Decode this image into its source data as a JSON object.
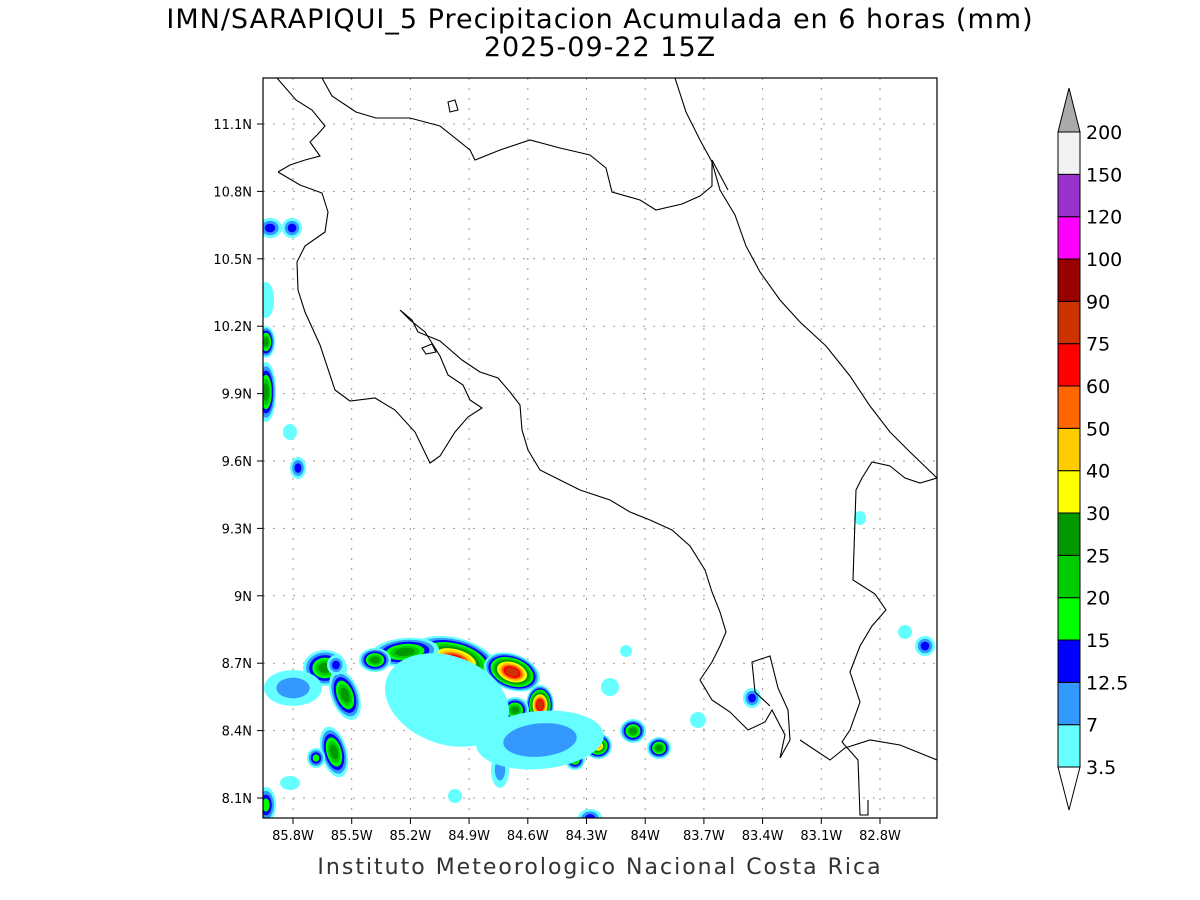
{
  "title": "IMN/SARAPIQUI_5 Precipitacion Acumulada en 6 horas (mm)",
  "subtitle": "2025-09-22 15Z",
  "footer": "Instituto Meteorologico Nacional Costa Rica",
  "map": {
    "lon_range": [
      "85.95W",
      "82.5W"
    ],
    "lat_range": [
      "8.0N",
      "11.3N"
    ],
    "grid": "dotted",
    "lon_ticks": [
      "85.8W",
      "85.5W",
      "85.2W",
      "84.9W",
      "84.6W",
      "84.3W",
      "84W",
      "83.7W",
      "83.4W",
      "83.1W",
      "82.8W"
    ],
    "lat_ticks": [
      "11.1N",
      "10.8N",
      "10.5N",
      "10.2N",
      "9.9N",
      "9.6N",
      "9.3N",
      "9N",
      "8.7N",
      "8.4N",
      "8.1N"
    ]
  },
  "colorbar": {
    "unit": "mm",
    "labels": [
      "3.5",
      "7",
      "12.5",
      "15",
      "20",
      "25",
      "30",
      "40",
      "50",
      "60",
      "75",
      "90",
      "100",
      "120",
      "150",
      "200"
    ],
    "colors": [
      "#66ffff",
      "#3399ff",
      "#0000ff",
      "#00ff00",
      "#00cc00",
      "#009900",
      "#ffff00",
      "#ffcc00",
      "#ff6600",
      "#ff0000",
      "#cc3300",
      "#990000",
      "#ff00ff",
      "#9933cc",
      "#f2f2f2"
    ],
    "over_color": "#aaaaaa",
    "under_color": "#ffffff"
  }
}
